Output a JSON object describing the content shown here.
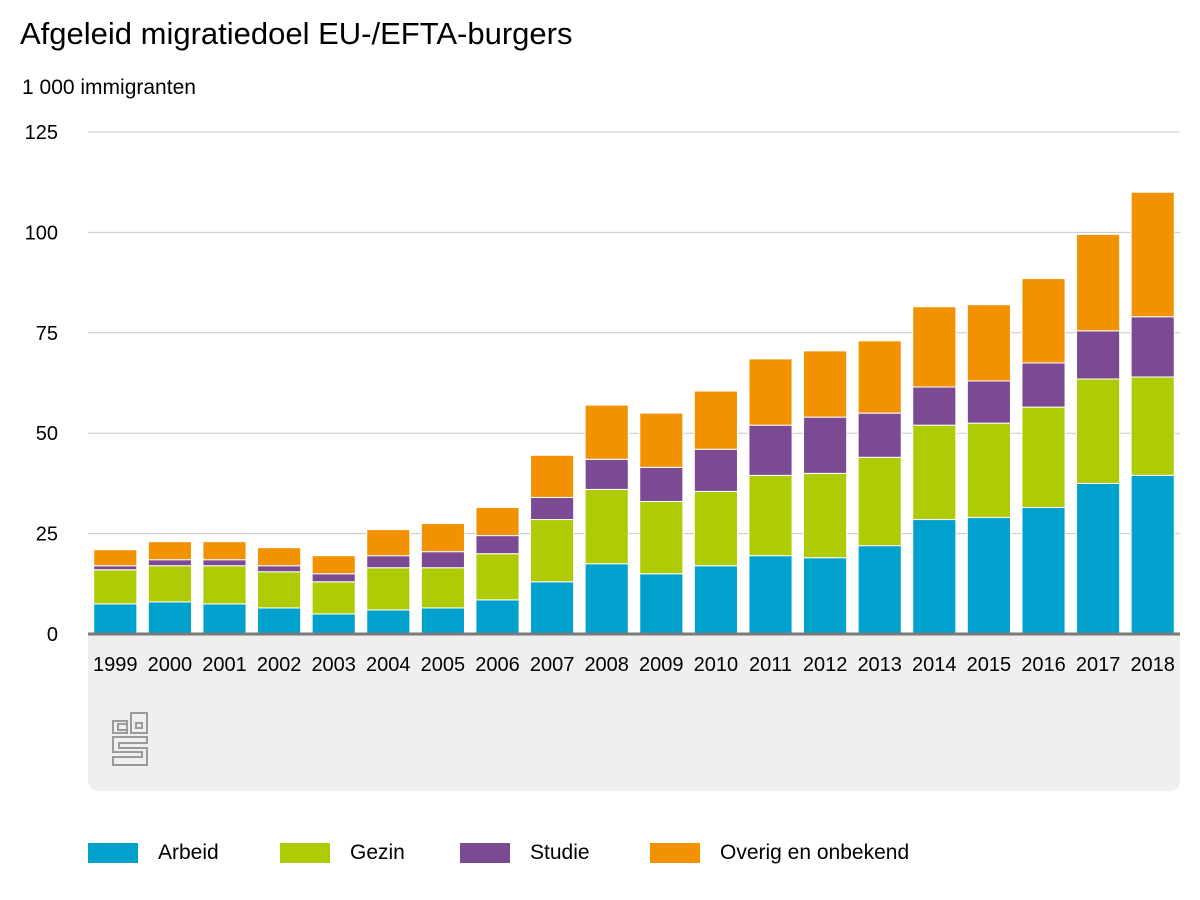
{
  "chart_data": {
    "type": "bar",
    "stacked": true,
    "title": "Afgeleid migratiedoel EU-/EFTA-burgers",
    "unit_label": "1 000 immigranten",
    "categories": [
      "1999",
      "2000",
      "2001",
      "2002",
      "2003",
      "2004",
      "2005",
      "2006",
      "2007",
      "2008",
      "2009",
      "2010",
      "2011",
      "2012",
      "2013",
      "2014",
      "2015",
      "2016",
      "2017",
      "2018"
    ],
    "series": [
      {
        "name": "Arbeid",
        "color": "#00a1cd",
        "values": [
          7.5,
          8.0,
          7.5,
          6.5,
          5.0,
          6.0,
          6.5,
          8.5,
          13.0,
          17.5,
          15.0,
          17.0,
          19.5,
          19.0,
          22.0,
          28.5,
          29.0,
          31.5,
          37.5,
          39.5
        ]
      },
      {
        "name": "Gezin",
        "color": "#afcb05",
        "values": [
          8.5,
          9.0,
          9.5,
          9.0,
          8.0,
          10.5,
          10.0,
          11.5,
          15.5,
          18.5,
          18.0,
          18.5,
          20.0,
          21.0,
          22.0,
          23.5,
          23.5,
          25.0,
          26.0,
          24.5
        ]
      },
      {
        "name": "Studie",
        "color": "#7b4a92",
        "values": [
          1.0,
          1.5,
          1.5,
          1.5,
          2.0,
          3.0,
          4.0,
          4.5,
          5.5,
          7.5,
          8.5,
          10.5,
          12.5,
          14.0,
          11.0,
          9.5,
          10.5,
          11.0,
          12.0,
          15.0
        ]
      },
      {
        "name": "Overig en onbekend",
        "color": "#f39200",
        "values": [
          4.0,
          4.5,
          4.5,
          4.5,
          4.5,
          6.5,
          7.0,
          7.0,
          10.5,
          13.5,
          13.5,
          14.5,
          16.5,
          16.5,
          18.0,
          20.0,
          19.0,
          21.0,
          24.0,
          31.0
        ]
      }
    ],
    "ylim": [
      0,
      125
    ],
    "yticks": [
      0,
      25,
      50,
      75,
      100,
      125
    ],
    "grid": true,
    "legend_position": "bottom",
    "background_band_color": "#efefef",
    "gridline_color": "#c8c8c8",
    "axis_color": "#7a7a7a"
  }
}
